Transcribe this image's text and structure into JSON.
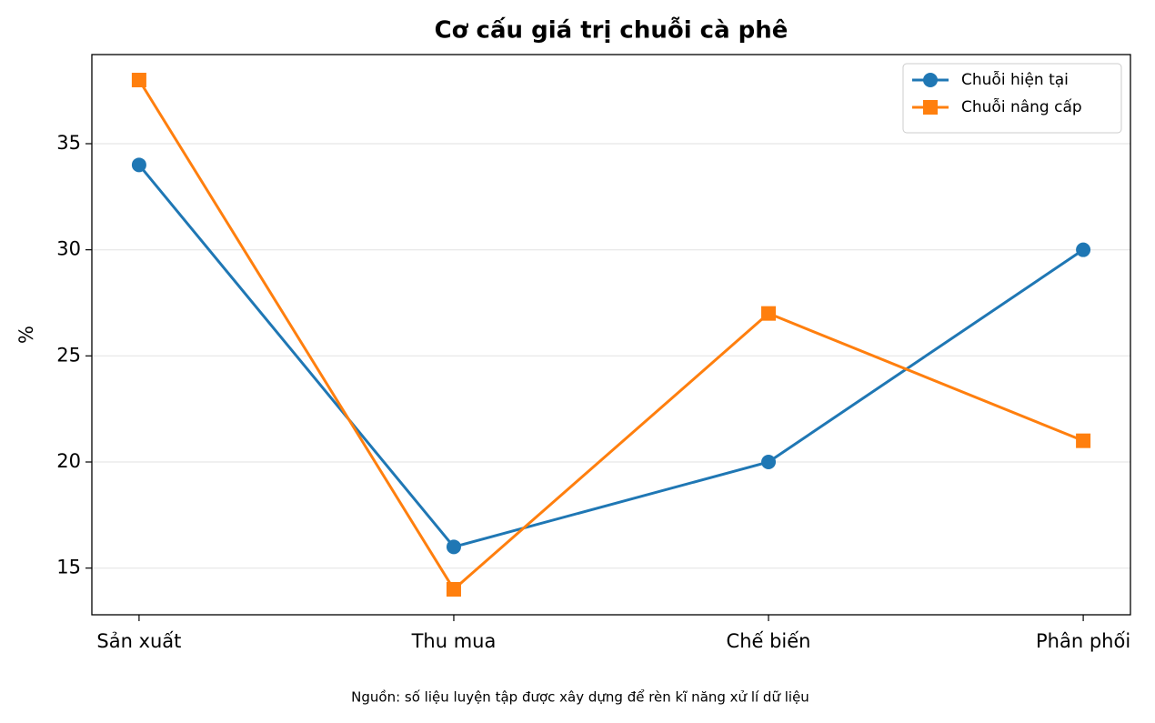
{
  "chart_data": {
    "type": "line",
    "title": "Cơ cấu giá trị chuỗi cà phê",
    "y_label": "%",
    "note": "Nguồn: số liệu luyện tập được xây dựng để rèn kĩ năng xử lí dữ liệu",
    "categories": [
      "Sản xuất",
      "Thu mua",
      "Chế biến",
      "Phân phối"
    ],
    "series": [
      {
        "name": "Chuỗi hiện tại",
        "color": "#1f77b4",
        "marker": "circle",
        "values": [
          34,
          16,
          20,
          30
        ]
      },
      {
        "name": "Chuỗi nâng cấp",
        "color": "#ff7f0e",
        "marker": "square",
        "values": [
          38,
          14,
          27,
          21
        ]
      }
    ],
    "ylim": [
      12.8,
      39.2
    ],
    "yticks": [
      15,
      20,
      25,
      30,
      35
    ],
    "grid": true,
    "legend": "upper right"
  }
}
